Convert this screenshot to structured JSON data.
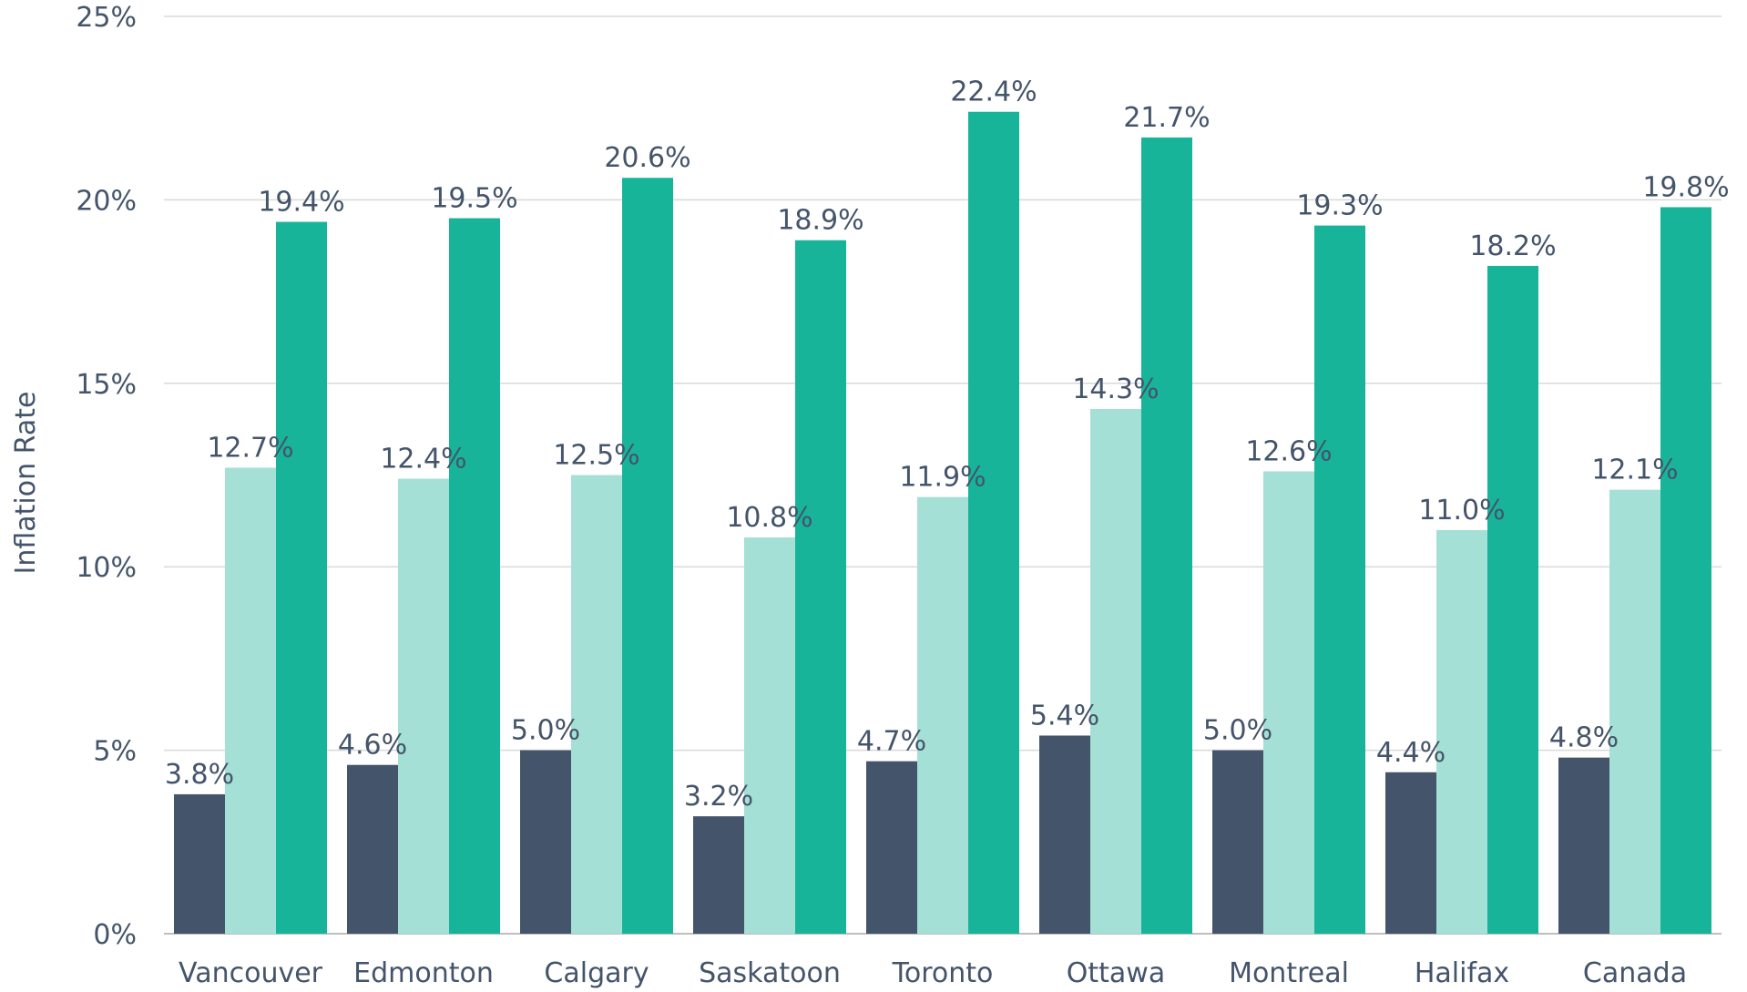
{
  "chart_data": {
    "type": "bar",
    "title": "",
    "xlabel": "",
    "ylabel": "Inflation Rate",
    "ylim": [
      0,
      25
    ],
    "yticks": [
      "0%",
      "5%",
      "10%",
      "15%",
      "20%",
      "25%"
    ],
    "grid": true,
    "legend": "none",
    "categories": [
      "Vancouver",
      "Edmonton",
      "Calgary",
      "Saskatoon",
      "Toronto",
      "Ottawa",
      "Montreal",
      "Halifax",
      "Canada"
    ],
    "series": [
      {
        "color": "#44546a",
        "values": [
          3.8,
          4.6,
          5.0,
          3.2,
          4.7,
          5.4,
          5.0,
          4.4,
          4.8
        ],
        "labels": [
          "3.8%",
          "4.6%",
          "5.0%",
          "3.2%",
          "4.7%",
          "5.4%",
          "5.0%",
          "4.4%",
          "4.8%"
        ]
      },
      {
        "color": "#a4e0d6",
        "values": [
          12.7,
          12.4,
          12.5,
          10.8,
          11.9,
          14.3,
          12.6,
          11.0,
          12.1
        ],
        "labels": [
          "12.7%",
          "12.4%",
          "12.5%",
          "10.8%",
          "11.9%",
          "14.3%",
          "12.6%",
          "11.0%",
          "12.1%"
        ]
      },
      {
        "color": "#17b49a",
        "values": [
          19.4,
          19.5,
          20.6,
          18.9,
          22.4,
          21.7,
          19.3,
          18.2,
          19.8
        ],
        "labels": [
          "19.4%",
          "19.5%",
          "20.6%",
          "18.9%",
          "22.4%",
          "21.7%",
          "19.3%",
          "18.2%",
          "19.8%"
        ]
      }
    ],
    "colors": {
      "gridline": "#d9d9d9",
      "axis": "#bfbfbf",
      "text": "#44546a"
    }
  }
}
